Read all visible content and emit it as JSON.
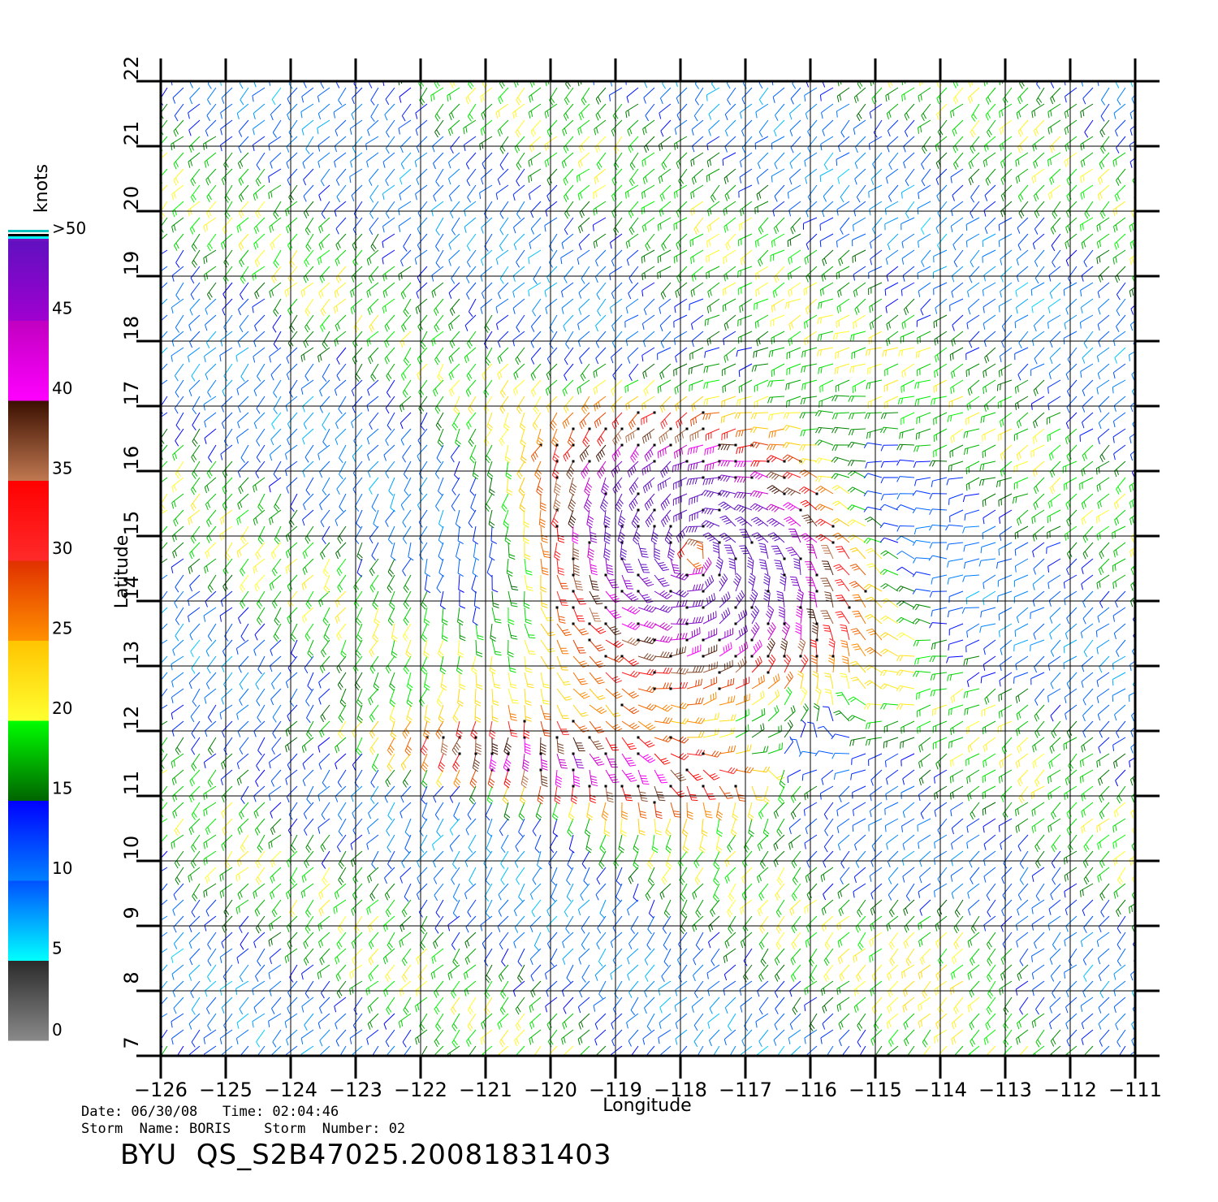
{
  "chart_data": {
    "type": "wind-barb-map",
    "xlabel": "Longitude",
    "ylabel": "Latitude",
    "xlim": [
      -126,
      -111
    ],
    "ylim": [
      7,
      22
    ],
    "x_ticks": [
      -126,
      -125,
      -124,
      -123,
      -122,
      -121,
      -120,
      -119,
      -118,
      -117,
      -116,
      -115,
      -114,
      -113,
      -112,
      -111
    ],
    "y_ticks": [
      7,
      8,
      9,
      10,
      11,
      12,
      13,
      14,
      15,
      16,
      17,
      18,
      19,
      20,
      21,
      22
    ],
    "grid": true,
    "colorbar": {
      "unit": "knots",
      "labels": [
        "0",
        "5",
        "10",
        "15",
        "20",
        "25",
        "30",
        "35",
        "40",
        "45",
        ">50"
      ],
      "bins": [
        {
          "from": 0,
          "to": 5,
          "top": "#2a2a2a",
          "bottom": "#8a8a8a"
        },
        {
          "from": 5,
          "to": 10,
          "top": "#0050ff",
          "bottom": "#00ffff"
        },
        {
          "from": 10,
          "to": 15,
          "top": "#0000ff",
          "bottom": "#0080ff"
        },
        {
          "from": 15,
          "to": 20,
          "top": "#00ff00",
          "bottom": "#006400"
        },
        {
          "from": 20,
          "to": 25,
          "top": "#ffc400",
          "bottom": "#ffff30"
        },
        {
          "from": 25,
          "to": 30,
          "top": "#e03000",
          "bottom": "#ff9000"
        },
        {
          "from": 30,
          "to": 35,
          "top": "#ff0000",
          "bottom": "#ff2a2a"
        },
        {
          "from": 35,
          "to": 40,
          "top": "#3a0f00",
          "bottom": "#c07850"
        },
        {
          "from": 40,
          "to": 45,
          "top": "#c000c0",
          "bottom": "#ff00ff"
        },
        {
          "from": 45,
          "to": 50,
          "top": "#6010c0",
          "bottom": "#a000d0"
        }
      ]
    },
    "storm_center": {
      "lon": -117.8,
      "lat": 14.7
    },
    "storm_max_wind_knots": 50,
    "ambient_speed_knots": 14,
    "ambient_direction_deg": 225
  },
  "footer": {
    "date_line": "Date: 06/30/08   Time: 02:04:46",
    "storm_line": "Storm  Name: BORIS    Storm  Number: 02",
    "file_id": "BYU  QS_S2B47025.20081831403"
  }
}
